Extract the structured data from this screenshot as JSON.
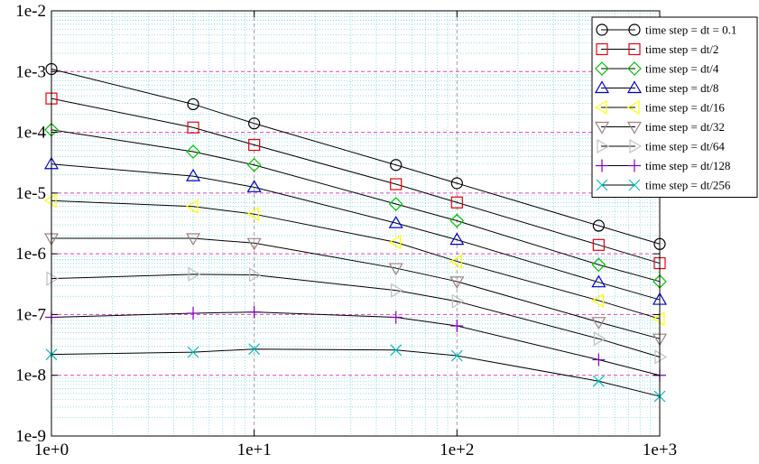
{
  "chart_data": {
    "type": "line",
    "title": "",
    "xlabel": "",
    "ylabel": "",
    "x_scale": "log",
    "y_scale": "log",
    "xlim": [
      1,
      1000
    ],
    "ylim": [
      1e-09,
      0.01
    ],
    "grid": true,
    "legend_position": "top-right",
    "x_ticks": [
      {
        "value": 1,
        "label": "1e+0"
      },
      {
        "value": 10,
        "label": "1e+1"
      },
      {
        "value": 100,
        "label": "1e+2"
      },
      {
        "value": 1000,
        "label": "1e+3"
      }
    ],
    "y_ticks": [
      {
        "value": 0.01,
        "label": "1e-2"
      },
      {
        "value": 0.001,
        "label": "1e-3"
      },
      {
        "value": 0.0001,
        "label": "1e-4"
      },
      {
        "value": 1e-05,
        "label": "1e-5"
      },
      {
        "value": 1e-06,
        "label": "1e-6"
      },
      {
        "value": 1e-07,
        "label": "1e-7"
      },
      {
        "value": 1e-08,
        "label": "1e-8"
      },
      {
        "value": 1e-09,
        "label": "1e-9"
      }
    ],
    "x": [
      1,
      5,
      10,
      50,
      100,
      500,
      1000
    ],
    "series": [
      {
        "name": "time step = dt = 0.1",
        "color": "#000000",
        "marker": "circle",
        "values": [
          0.0011,
          0.00029,
          0.00014,
          2.9e-05,
          1.45e-05,
          2.9e-06,
          1.45e-06
        ]
      },
      {
        "name": "time step = dt/2",
        "color": "#e8000b",
        "marker": "square",
        "values": [
          0.00036,
          0.00012,
          6.2e-05,
          1.4e-05,
          7e-06,
          1.4e-06,
          7e-07
        ]
      },
      {
        "name": "time step = dt/4",
        "color": "#00c000",
        "marker": "diamond",
        "values": [
          0.00011,
          4.8e-05,
          2.9e-05,
          6.6e-06,
          3.5e-06,
          6.6e-07,
          3.5e-07
        ]
      },
      {
        "name": "time step = dt/8",
        "color": "#0000d0",
        "marker": "triangle-up",
        "values": [
          3e-05,
          1.9e-05,
          1.25e-05,
          3.2e-06,
          1.7e-06,
          3.4e-07,
          1.75e-07
        ]
      },
      {
        "name": "time step = dt/16",
        "color": "#ffff00",
        "marker": "triangle-left",
        "values": [
          7.5e-06,
          6e-06,
          4.5e-06,
          1.55e-06,
          7.5e-07,
          1.7e-07,
          8.5e-08
        ]
      },
      {
        "name": "time step = dt/32",
        "color": "#a08080",
        "marker": "triangle-down",
        "values": [
          1.8e-06,
          1.8e-06,
          1.5e-06,
          5.8e-07,
          3.5e-07,
          7.5e-08,
          4e-08
        ]
      },
      {
        "name": "time step = dt/64",
        "color": "#c0c0c0",
        "marker": "triangle-right",
        "values": [
          3.9e-07,
          4.6e-07,
          4.5e-07,
          2.5e-07,
          1.65e-07,
          4e-08,
          2e-08
        ]
      },
      {
        "name": "time step = dt/128",
        "color": "#8000c0",
        "marker": "plus",
        "values": [
          9e-08,
          1.05e-07,
          1.1e-07,
          9e-08,
          6.5e-08,
          1.8e-08,
          1e-08
        ]
      },
      {
        "name": "time step = dt/256",
        "color": "#00c0c0",
        "marker": "x",
        "values": [
          2.2e-08,
          2.4e-08,
          2.7e-08,
          2.6e-08,
          2.1e-08,
          8e-09,
          4.5e-09
        ]
      }
    ],
    "colors": {
      "major_grid_y": "#e040c0",
      "major_grid_x": "#a0a0a0",
      "minor_grid": "#50c8d8",
      "line": "#000000"
    }
  }
}
